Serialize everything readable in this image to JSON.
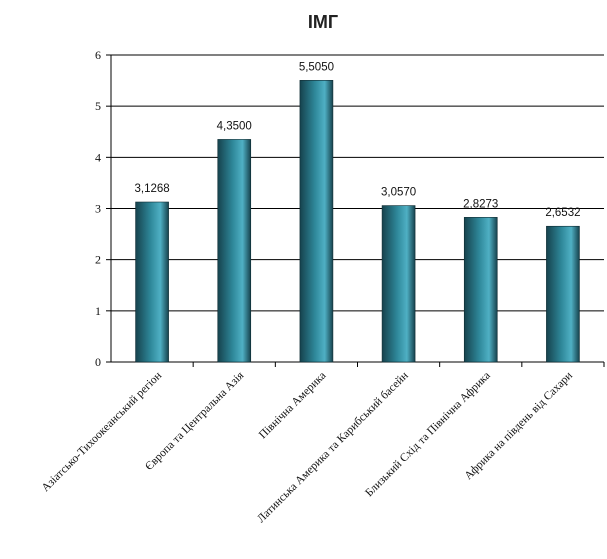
{
  "chart_data": {
    "type": "bar",
    "title": "ІМГ",
    "categories": [
      "Азіатсько-Тихоокеанський регіон",
      "Європа та Центральна Азія",
      "Північна Америка",
      "Латинська Америка та Карибський басейн",
      "Близький Схід та Північна Африка",
      "Африка на південь від Сахари"
    ],
    "values": [
      3.1268,
      4.35,
      5.505,
      3.057,
      2.8273,
      2.6532
    ],
    "value_labels": [
      "3,1268",
      "4,3500",
      "5,5050",
      "3,0570",
      "2,8273",
      "2,6532"
    ],
    "ylim": [
      0,
      6
    ],
    "y_ticks": [
      0,
      1,
      2,
      3,
      4,
      5,
      6
    ],
    "y_tick_labels": [
      "0",
      "1",
      "2",
      "3",
      "4",
      "5",
      "6"
    ],
    "grid": true,
    "legend": "none",
    "colors": {
      "bar_dark": "#16424d",
      "bar_mid": "#2e8799",
      "bar_light": "#4fb0c4",
      "grid": "#000000"
    }
  }
}
